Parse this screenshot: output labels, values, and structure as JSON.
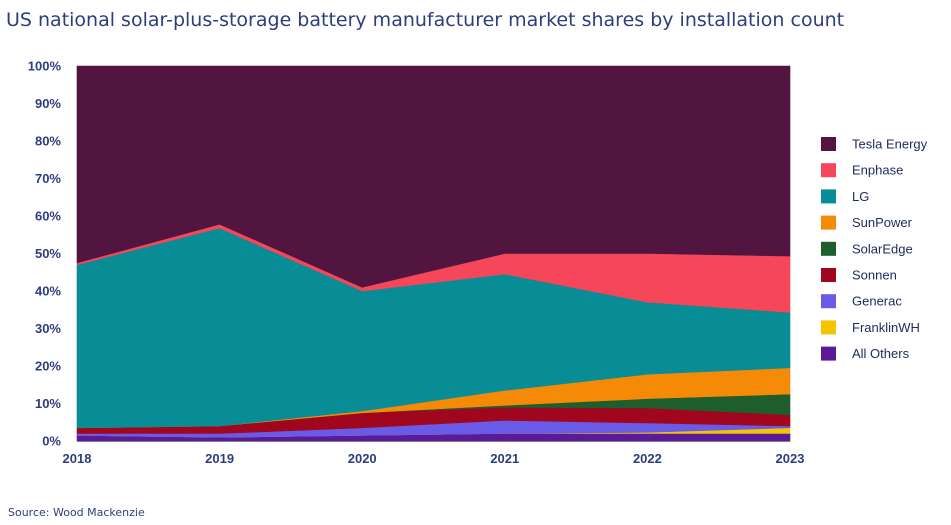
{
  "title": "US national solar-plus-storage  battery manufacturer market shares by installation count",
  "source": "Source: Wood Mackenzie",
  "chart_data": {
    "type": "area",
    "stacked": true,
    "x": [
      "2018",
      "2019",
      "2020",
      "2021",
      "2022",
      "2023"
    ],
    "ylim": [
      0,
      100
    ],
    "yticks": [
      "0%",
      "10%",
      "20%",
      "30%",
      "40%",
      "50%",
      "60%",
      "70%",
      "80%",
      "90%",
      "100%"
    ],
    "legend_position": "right",
    "series": [
      {
        "name": "All Others",
        "color": "#5a1a9a",
        "values": [
          1.5,
          1.0,
          1.5,
          2.0,
          2.0,
          2.0
        ]
      },
      {
        "name": "FranklinWH",
        "color": "#f5c400",
        "values": [
          0,
          0,
          0,
          0,
          0.3,
          1.5
        ]
      },
      {
        "name": "Generac",
        "color": "#6a5ae8",
        "values": [
          0.5,
          1.0,
          2.0,
          3.5,
          2.5,
          0.5
        ]
      },
      {
        "name": "Sonnen",
        "color": "#a0061e",
        "values": [
          1.5,
          2.0,
          4.0,
          3.5,
          4.0,
          3.0
        ]
      },
      {
        "name": "SolarEdge",
        "color": "#1e5e2e",
        "values": [
          0,
          0,
          0,
          0.5,
          2.5,
          5.5
        ]
      },
      {
        "name": "SunPower",
        "color": "#f58a07",
        "values": [
          0,
          0,
          0.5,
          4.0,
          6.5,
          7.0
        ]
      },
      {
        "name": "LG",
        "color": "#088c96",
        "values": [
          43.5,
          52.8,
          32.0,
          31.0,
          19.2,
          14.8
        ]
      },
      {
        "name": "Enphase",
        "color": "#f5465a",
        "values": [
          0.5,
          1.0,
          1.0,
          5.5,
          13.0,
          15.0
        ]
      },
      {
        "name": "Tesla Energy",
        "color": "#52153f",
        "values": [
          52.5,
          42.2,
          59.0,
          50.0,
          50.0,
          50.7
        ]
      }
    ]
  }
}
